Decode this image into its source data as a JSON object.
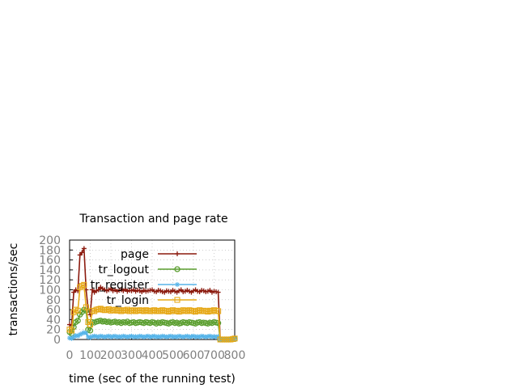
{
  "chart_data": {
    "type": "line",
    "title": "Transaction and page rate",
    "xlabel": "time (sec of the running test)",
    "ylabel": "transactions/sec",
    "xlim": [
      0,
      800
    ],
    "ylim": [
      0,
      200
    ],
    "xticks": [
      0,
      100,
      200,
      300,
      400,
      500,
      600,
      700,
      800
    ],
    "yticks": [
      0,
      20,
      40,
      60,
      80,
      100,
      120,
      140,
      160,
      180,
      200
    ],
    "grid": true,
    "legend_position": "top-right",
    "series": [
      {
        "name": "page",
        "color": "#8b1a0e",
        "marker": "plus",
        "x": [
          0,
          10,
          20,
          30,
          40,
          50,
          60,
          70,
          80,
          90,
          100,
          110,
          120,
          130,
          140,
          150,
          160,
          170,
          180,
          190,
          200,
          210,
          220,
          230,
          240,
          250,
          260,
          270,
          280,
          290,
          300,
          310,
          320,
          330,
          340,
          350,
          360,
          370,
          380,
          390,
          400,
          410,
          420,
          430,
          440,
          450,
          460,
          470,
          480,
          490,
          500,
          510,
          520,
          530,
          540,
          550,
          560,
          570,
          580,
          590,
          600,
          610,
          620,
          630,
          640,
          650,
          660,
          670,
          680,
          690,
          700,
          710,
          720,
          730,
          740,
          750,
          760,
          770,
          780,
          790,
          800
        ],
        "y": [
          30,
          28,
          95,
          100,
          98,
          170,
          175,
          183,
          100,
          60,
          50,
          100,
          95,
          98,
          100,
          105,
          102,
          100,
          98,
          100,
          102,
          98,
          100,
          97,
          99,
          100,
          98,
          101,
          97,
          99,
          98,
          100,
          97,
          99,
          98,
          96,
          99,
          97,
          98,
          99,
          100,
          97,
          96,
          99,
          98,
          96,
          95,
          98,
          97,
          96,
          99,
          97,
          95,
          98,
          100,
          96,
          97,
          99,
          97,
          95,
          98,
          100,
          97,
          96,
          99,
          98,
          96,
          97,
          99,
          95,
          97,
          96,
          95,
          0,
          0,
          0,
          0,
          0,
          0,
          2,
          3
        ]
      },
      {
        "name": "tr_logout",
        "color": "#5a9e2f",
        "marker": "circle",
        "x": [
          0,
          10,
          20,
          30,
          40,
          50,
          60,
          70,
          80,
          90,
          100,
          110,
          120,
          130,
          140,
          150,
          160,
          170,
          180,
          190,
          200,
          210,
          220,
          230,
          240,
          250,
          260,
          270,
          280,
          290,
          300,
          310,
          320,
          330,
          340,
          350,
          360,
          370,
          380,
          390,
          400,
          410,
          420,
          430,
          440,
          450,
          460,
          470,
          480,
          490,
          500,
          510,
          520,
          530,
          540,
          550,
          560,
          570,
          580,
          590,
          600,
          610,
          620,
          630,
          640,
          650,
          660,
          670,
          680,
          690,
          700,
          710,
          720,
          730,
          740,
          750,
          760,
          770,
          780,
          790,
          800
        ],
        "y": [
          15,
          12,
          25,
          35,
          38,
          50,
          55,
          60,
          58,
          20,
          18,
          35,
          34,
          36,
          37,
          38,
          36,
          37,
          35,
          36,
          34,
          35,
          36,
          34,
          35,
          33,
          35,
          34,
          36,
          33,
          34,
          35,
          33,
          34,
          35,
          34,
          33,
          35,
          34,
          33,
          35,
          34,
          32,
          34,
          33,
          35,
          34,
          33,
          32,
          34,
          35,
          33,
          34,
          32,
          33,
          35,
          34,
          33,
          35,
          34,
          33,
          32,
          34,
          35,
          33,
          34,
          33,
          32,
          34,
          33,
          35,
          34,
          33,
          0,
          0,
          0,
          0,
          0,
          0,
          1,
          1
        ]
      },
      {
        "name": "tr_register",
        "color": "#56b4e9",
        "marker": "star",
        "x": [
          0,
          10,
          20,
          30,
          40,
          50,
          60,
          70,
          80,
          90,
          100,
          110,
          120,
          130,
          140,
          150,
          160,
          170,
          180,
          190,
          200,
          210,
          220,
          230,
          240,
          250,
          260,
          270,
          280,
          290,
          300,
          310,
          320,
          330,
          340,
          350,
          360,
          370,
          380,
          390,
          400,
          410,
          420,
          430,
          440,
          450,
          460,
          470,
          480,
          490,
          500,
          510,
          520,
          530,
          540,
          550,
          560,
          570,
          580,
          590,
          600,
          610,
          620,
          630,
          640,
          650,
          660,
          670,
          680,
          690,
          700,
          710,
          720,
          730,
          740,
          750,
          760,
          770,
          780,
          790,
          800
        ],
        "y": [
          3,
          2,
          5,
          8,
          7,
          10,
          12,
          14,
          13,
          5,
          4,
          6,
          7,
          6,
          5,
          7,
          6,
          5,
          6,
          7,
          5,
          6,
          7,
          5,
          6,
          5,
          7,
          6,
          5,
          6,
          7,
          5,
          6,
          5,
          7,
          6,
          5,
          6,
          7,
          5,
          6,
          7,
          5,
          6,
          5,
          7,
          6,
          5,
          6,
          7,
          5,
          6,
          5,
          7,
          6,
          5,
          6,
          7,
          5,
          6,
          7,
          5,
          6,
          5,
          7,
          6,
          5,
          6,
          7,
          5,
          6,
          5,
          6,
          0,
          0,
          0,
          0,
          0,
          0,
          1,
          1
        ]
      },
      {
        "name": "tr_login",
        "color": "#e6a817",
        "marker": "square",
        "x": [
          0,
          10,
          20,
          30,
          40,
          50,
          60,
          70,
          80,
          90,
          100,
          110,
          120,
          130,
          140,
          150,
          160,
          170,
          180,
          190,
          200,
          210,
          220,
          230,
          240,
          250,
          260,
          270,
          280,
          290,
          300,
          310,
          320,
          330,
          340,
          350,
          360,
          370,
          380,
          390,
          400,
          410,
          420,
          430,
          440,
          450,
          460,
          470,
          480,
          490,
          500,
          510,
          520,
          530,
          540,
          550,
          560,
          570,
          580,
          590,
          600,
          610,
          620,
          630,
          640,
          650,
          660,
          670,
          680,
          690,
          700,
          710,
          720,
          730,
          740,
          750,
          760,
          770,
          780,
          790,
          800
        ],
        "y": [
          20,
          18,
          55,
          60,
          58,
          105,
          108,
          110,
          65,
          35,
          30,
          58,
          57,
          60,
          61,
          62,
          60,
          59,
          60,
          61,
          58,
          59,
          60,
          58,
          59,
          57,
          59,
          58,
          60,
          57,
          58,
          59,
          57,
          58,
          59,
          58,
          57,
          59,
          58,
          57,
          58,
          59,
          57,
          58,
          57,
          59,
          58,
          57,
          56,
          58,
          59,
          57,
          58,
          56,
          57,
          59,
          58,
          57,
          59,
          58,
          57,
          56,
          58,
          59,
          57,
          58,
          57,
          56,
          58,
          57,
          59,
          58,
          57,
          0,
          0,
          0,
          0,
          0,
          0,
          1,
          2
        ]
      }
    ]
  }
}
